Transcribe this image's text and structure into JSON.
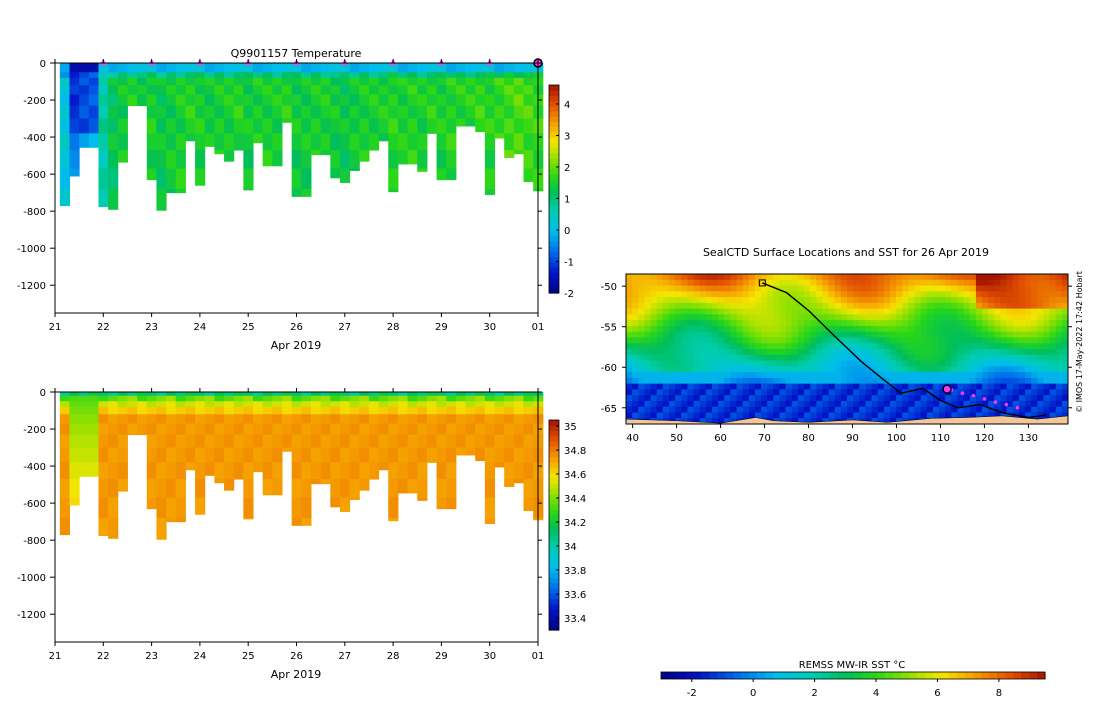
{
  "chart_data": [
    {
      "type": "heatmap",
      "panel": "temperature-section",
      "title": "Q9901157  Temperature",
      "xlabel": "Apr 2019",
      "x_ticks": [
        "21",
        "22",
        "23",
        "24",
        "25",
        "26",
        "27",
        "28",
        "29",
        "30",
        "01"
      ],
      "x_range_days": [
        21,
        31
      ],
      "ylim": [
        -1350,
        0
      ],
      "y_ticks": [
        0,
        -200,
        -400,
        -600,
        -800,
        -1000,
        -1200
      ],
      "colorbar": {
        "min": -2,
        "max": 4.6,
        "ticks": [
          -2,
          -1,
          0,
          1,
          2,
          3,
          4
        ]
      },
      "profile_markers_days": [
        22,
        23,
        24,
        25,
        26,
        27,
        28,
        29,
        30
      ],
      "profiles": [
        {
          "day": 21.2,
          "depth": 770,
          "value": 0.2
        },
        {
          "day": 21.4,
          "depth": 610,
          "value": -1.5
        },
        {
          "day": 21.6,
          "depth": 455,
          "value": -1.3
        },
        {
          "day": 21.8,
          "depth": 455,
          "value": -1.2
        },
        {
          "day": 22.0,
          "depth": 775,
          "value": 0.7
        },
        {
          "day": 22.2,
          "depth": 790,
          "value": 1.2
        },
        {
          "day": 22.4,
          "depth": 535,
          "value": 1.4
        },
        {
          "day": 22.6,
          "depth": 230,
          "value": 1.5
        },
        {
          "day": 22.8,
          "depth": 230,
          "value": 1.4
        },
        {
          "day": 23.0,
          "depth": 630,
          "value": 1.5
        },
        {
          "day": 23.2,
          "depth": 795,
          "value": 1.3
        },
        {
          "day": 23.4,
          "depth": 700,
          "value": 1.4
        },
        {
          "day": 23.6,
          "depth": 700,
          "value": 1.5
        },
        {
          "day": 23.8,
          "depth": 420,
          "value": 1.6
        },
        {
          "day": 24.0,
          "depth": 660,
          "value": 1.5
        },
        {
          "day": 24.2,
          "depth": 450,
          "value": 1.4
        },
        {
          "day": 24.4,
          "depth": 490,
          "value": 1.5
        },
        {
          "day": 24.6,
          "depth": 530,
          "value": 1.5
        },
        {
          "day": 24.8,
          "depth": 470,
          "value": 1.6
        },
        {
          "day": 25.0,
          "depth": 685,
          "value": 1.4
        },
        {
          "day": 25.2,
          "depth": 430,
          "value": 1.5
        },
        {
          "day": 25.4,
          "depth": 555,
          "value": 1.5
        },
        {
          "day": 25.6,
          "depth": 555,
          "value": 1.5
        },
        {
          "day": 25.8,
          "depth": 320,
          "value": 1.6
        },
        {
          "day": 26.0,
          "depth": 720,
          "value": 1.4
        },
        {
          "day": 26.2,
          "depth": 720,
          "value": 1.4
        },
        {
          "day": 26.4,
          "depth": 495,
          "value": 1.5
        },
        {
          "day": 26.6,
          "depth": 495,
          "value": 1.5
        },
        {
          "day": 26.8,
          "depth": 620,
          "value": 1.4
        },
        {
          "day": 27.0,
          "depth": 645,
          "value": 1.3
        },
        {
          "day": 27.2,
          "depth": 580,
          "value": 1.4
        },
        {
          "day": 27.4,
          "depth": 530,
          "value": 1.5
        },
        {
          "day": 27.6,
          "depth": 470,
          "value": 1.5
        },
        {
          "day": 27.8,
          "depth": 420,
          "value": 1.5
        },
        {
          "day": 28.0,
          "depth": 695,
          "value": 1.6
        },
        {
          "day": 28.2,
          "depth": 545,
          "value": 1.5
        },
        {
          "day": 28.4,
          "depth": 545,
          "value": 1.6
        },
        {
          "day": 28.6,
          "depth": 585,
          "value": 1.5
        },
        {
          "day": 28.8,
          "depth": 380,
          "value": 1.6
        },
        {
          "day": 29.0,
          "depth": 630,
          "value": 1.5
        },
        {
          "day": 29.2,
          "depth": 630,
          "value": 1.6
        },
        {
          "day": 29.4,
          "depth": 340,
          "value": 1.6
        },
        {
          "day": 29.6,
          "depth": 340,
          "value": 1.6
        },
        {
          "day": 29.8,
          "depth": 370,
          "value": 1.7
        },
        {
          "day": 30.0,
          "depth": 710,
          "value": 1.6
        },
        {
          "day": 30.2,
          "depth": 405,
          "value": 1.7
        },
        {
          "day": 30.4,
          "depth": 510,
          "value": 1.8
        },
        {
          "day": 30.6,
          "depth": 490,
          "value": 1.9
        },
        {
          "day": 30.8,
          "depth": 640,
          "value": 1.8
        },
        {
          "day": 31.0,
          "depth": 690,
          "value": 1.7
        }
      ]
    },
    {
      "type": "heatmap",
      "panel": "salinity-section",
      "title": "",
      "xlabel": "Apr 2019",
      "x_ticks": [
        "21",
        "22",
        "23",
        "24",
        "25",
        "26",
        "27",
        "28",
        "29",
        "30",
        "01"
      ],
      "x_range_days": [
        21,
        31
      ],
      "ylim": [
        -1350,
        0
      ],
      "y_ticks": [
        0,
        -200,
        -400,
        -600,
        -800,
        -1000,
        -1200
      ],
      "colorbar": {
        "min": 33.3,
        "max": 35.05,
        "ticks": [
          "33.4",
          "33.6",
          "33.8",
          "34",
          "34.2",
          "34.4",
          "34.6",
          "34.8",
          "35"
        ]
      },
      "deep_value": 34.72
    },
    {
      "type": "heatmap",
      "panel": "sst-map",
      "title": "SealCTD Surface Locations and SST for 26 Apr 2019",
      "x_ticks": [
        "40",
        "50",
        "60",
        "70",
        "80",
        "90",
        "100",
        "110",
        "120",
        "130"
      ],
      "xlim_lon": [
        38.5,
        139
      ],
      "y_ticks": [
        "-50",
        "-55",
        "-60",
        "-65"
      ],
      "ylim_lat": [
        -67,
        -48.5
      ],
      "colorbar": {
        "label": "REMSS MW-IR SST °C",
        "min": -3,
        "max": 9.5,
        "ticks": [
          "-2",
          "0",
          "2",
          "4",
          "6",
          "8"
        ]
      },
      "track": [
        [
          69.5,
          -49.6
        ],
        [
          75,
          -50.8
        ],
        [
          80,
          -53
        ],
        [
          86,
          -56.2
        ],
        [
          92,
          -59.3
        ],
        [
          97,
          -61.5
        ],
        [
          101,
          -63.2
        ],
        [
          106,
          -62.6
        ],
        [
          110,
          -64.1
        ],
        [
          114,
          -65
        ],
        [
          119,
          -64.6
        ],
        [
          124,
          -65.6
        ],
        [
          130,
          -66.2
        ],
        [
          134,
          -65.9
        ]
      ],
      "surface_points": [
        [
          112.5,
          -62.8
        ],
        [
          115,
          -63.2
        ],
        [
          117.5,
          -63.5
        ],
        [
          120,
          -63.9
        ],
        [
          122.5,
          -64.3
        ],
        [
          125,
          -64.6
        ],
        [
          127.5,
          -65
        ]
      ],
      "current_position": [
        111.5,
        -62.7
      ]
    }
  ],
  "credit": "© IMOS 17-May-2022 17:42 Hobart",
  "colors": {
    "marker": "#ff33ff",
    "land": "#f3c69a",
    "track": "#000000"
  }
}
